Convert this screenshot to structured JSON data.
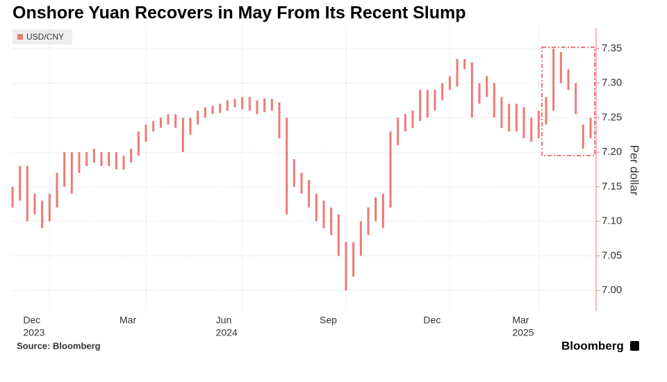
{
  "chart_data": {
    "type": "range-bar",
    "title": "Onshore Yuan Recovers in May From Its Recent Slump",
    "y_label": "Per dollar",
    "source": "Source: Bloomberg",
    "brand": "Bloomberg",
    "categories": [
      null,
      null,
      null,
      null,
      null,
      "Dec",
      null,
      null,
      null,
      null,
      null,
      null,
      null,
      null,
      null,
      null,
      null,
      null,
      "Mar",
      null,
      null,
      null,
      null,
      null,
      null,
      null,
      null,
      null,
      null,
      null,
      null,
      "Jun",
      null,
      null,
      null,
      null,
      null,
      null,
      null,
      null,
      null,
      null,
      null,
      null,
      null,
      "Sep",
      null,
      null,
      null,
      null,
      null,
      null,
      null,
      null,
      null,
      null,
      null,
      null,
      null,
      "Dec",
      null,
      null,
      null,
      null,
      null,
      null,
      null,
      null,
      null,
      null,
      null,
      "Mar",
      null,
      null,
      null,
      null,
      null,
      null,
      null
    ],
    "years": [
      null,
      null,
      null,
      null,
      null,
      "2023",
      null,
      null,
      null,
      null,
      null,
      null,
      null,
      null,
      null,
      null,
      null,
      null,
      null,
      null,
      null,
      null,
      null,
      null,
      null,
      null,
      null,
      null,
      null,
      null,
      null,
      "2024",
      null,
      null,
      null,
      null,
      null,
      null,
      null,
      null,
      null,
      null,
      null,
      null,
      null,
      null,
      null,
      null,
      null,
      null,
      null,
      null,
      null,
      null,
      null,
      null,
      null,
      null,
      null,
      null,
      null,
      null,
      null,
      null,
      null,
      null,
      null,
      null,
      null,
      null,
      null,
      "2025",
      null,
      null,
      null,
      null,
      null,
      null,
      null
    ],
    "series": [
      {
        "name": "USD/CNY",
        "color": "#ec7a76",
        "high": [
          7.15,
          7.18,
          7.18,
          7.14,
          7.13,
          7.14,
          7.17,
          7.2,
          7.2,
          7.2,
          7.2,
          7.205,
          7.2,
          7.2,
          7.2,
          7.195,
          7.205,
          7.23,
          7.24,
          7.245,
          7.25,
          7.255,
          7.255,
          7.25,
          7.25,
          7.26,
          7.265,
          7.267,
          7.27,
          7.275,
          7.277,
          7.28,
          7.28,
          7.275,
          7.278,
          7.277,
          7.272,
          7.25,
          7.19,
          7.17,
          7.16,
          7.14,
          7.13,
          7.12,
          7.11,
          7.07,
          7.07,
          7.1,
          7.12,
          7.135,
          7.14,
          7.23,
          7.25,
          7.255,
          7.26,
          7.29,
          7.29,
          7.29,
          7.3,
          7.31,
          7.335,
          7.335,
          7.33,
          7.3,
          7.31,
          7.3,
          7.28,
          7.27,
          7.27,
          7.265,
          7.25,
          7.26,
          7.28,
          7.35,
          7.345,
          7.32,
          7.3,
          7.24,
          7.25
        ],
        "low": [
          7.12,
          7.13,
          7.1,
          7.11,
          7.09,
          7.1,
          7.12,
          7.15,
          7.14,
          7.17,
          7.18,
          7.185,
          7.18,
          7.18,
          7.175,
          7.175,
          7.185,
          7.195,
          7.215,
          7.23,
          7.235,
          7.24,
          7.235,
          7.2,
          7.225,
          7.24,
          7.25,
          7.255,
          7.257,
          7.26,
          7.265,
          7.262,
          7.26,
          7.255,
          7.258,
          7.26,
          7.22,
          7.11,
          7.15,
          7.14,
          7.12,
          7.1,
          7.09,
          7.08,
          7.05,
          7.0,
          7.02,
          7.05,
          7.08,
          7.1,
          7.09,
          7.12,
          7.21,
          7.23,
          7.235,
          7.245,
          7.25,
          7.26,
          7.275,
          7.29,
          7.295,
          7.32,
          7.25,
          7.27,
          7.28,
          7.25,
          7.235,
          7.23,
          7.23,
          7.22,
          7.215,
          7.22,
          7.24,
          7.26,
          7.3,
          7.29,
          7.255,
          7.205,
          7.22
        ]
      }
    ],
    "ylim": [
      6.97,
      7.38
    ],
    "yticks": [
      {
        "value": 7.0,
        "label": "7.00"
      },
      {
        "value": 7.05,
        "label": "7.05"
      },
      {
        "value": 7.1,
        "label": "7.10"
      },
      {
        "value": 7.15,
        "label": "7.15"
      },
      {
        "value": 7.2,
        "label": "7.20"
      },
      {
        "value": 7.25,
        "label": "7.25"
      },
      {
        "value": 7.3,
        "label": "7.30"
      },
      {
        "value": 7.35,
        "label": "7.35"
      }
    ],
    "grid": true
  }
}
